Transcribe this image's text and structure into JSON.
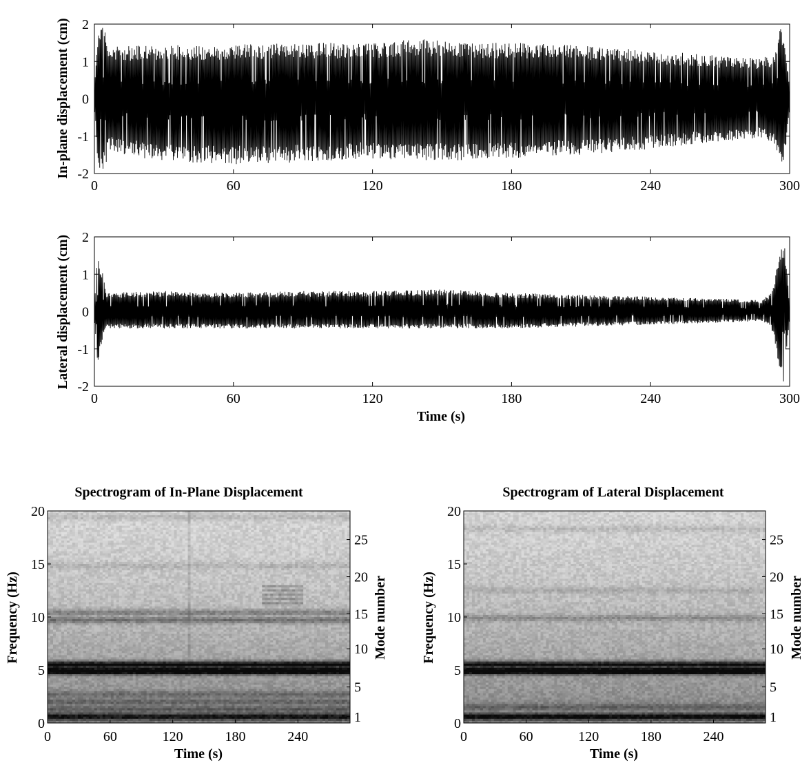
{
  "chart_data": [
    {
      "id": "inplane",
      "type": "line",
      "title": "",
      "xlabel": "",
      "ylabel": "In-plane displacement (cm)",
      "xlim": [
        0,
        300
      ],
      "ylim": [
        -2,
        2
      ],
      "xticks": [
        0,
        60,
        120,
        180,
        240,
        300
      ],
      "yticks": [
        -2,
        -1,
        0,
        1,
        2
      ],
      "grid": false,
      "envelope": {
        "t": [
          0,
          1.5,
          3,
          4.5,
          6,
          30,
          60,
          90,
          120,
          140,
          165,
          180,
          210,
          240,
          270,
          288,
          293,
          296,
          297,
          298,
          300
        ],
        "upper": [
          0.2,
          1.9,
          2.0,
          1.95,
          1.4,
          1.45,
          1.45,
          1.5,
          1.5,
          1.6,
          1.5,
          1.5,
          1.45,
          1.3,
          1.15,
          1.1,
          1.2,
          1.9,
          2.0,
          1.5,
          0.3
        ],
        "lower": [
          -0.2,
          -1.9,
          -2.0,
          -1.9,
          -1.4,
          -1.7,
          -1.75,
          -1.7,
          -1.6,
          -1.65,
          -1.65,
          -1.6,
          -1.5,
          -1.35,
          -1.15,
          -1.05,
          -1.25,
          -1.9,
          -2.0,
          -1.5,
          -0.3
        ]
      }
    },
    {
      "id": "lateral",
      "type": "line",
      "title": "",
      "xlabel": "Time (s)",
      "ylabel": "Lateral displacement (cm)",
      "xlim": [
        0,
        300
      ],
      "ylim": [
        -2,
        2
      ],
      "xticks": [
        0,
        60,
        120,
        180,
        240,
        300
      ],
      "yticks": [
        -2,
        -1,
        0,
        1,
        2
      ],
      "grid": false,
      "envelope": {
        "t": [
          0,
          1,
          2,
          3,
          4,
          5,
          30,
          60,
          90,
          120,
          150,
          180,
          210,
          240,
          270,
          288,
          292,
          294,
          296,
          297,
          298,
          300
        ],
        "upper": [
          0.2,
          1.3,
          1.5,
          1.0,
          1.15,
          0.5,
          0.55,
          0.5,
          0.55,
          0.55,
          0.6,
          0.5,
          0.45,
          0.4,
          0.35,
          0.3,
          0.5,
          1.0,
          1.8,
          2.0,
          1.7,
          0.2
        ],
        "lower": [
          -0.2,
          -1.2,
          -1.4,
          -0.9,
          -0.6,
          -0.45,
          -0.45,
          -0.45,
          -0.45,
          -0.45,
          -0.45,
          -0.45,
          -0.4,
          -0.35,
          -0.3,
          -0.25,
          -0.4,
          -1.0,
          -1.6,
          -2.0,
          -1.7,
          -0.2
        ]
      }
    },
    {
      "id": "spec_inplane",
      "type": "heatmap",
      "title": "Spectrogram of In-Plane Displacement",
      "xlabel": "Time (s)",
      "ylabel": "Frequency (Hz)",
      "ylabel_right": "Mode number",
      "xlim": [
        0,
        290
      ],
      "ylim": [
        0,
        20
      ],
      "xticks": [
        0,
        60,
        120,
        180,
        240
      ],
      "yticks": [
        0,
        5,
        10,
        15,
        20
      ],
      "right_ticks": [
        {
          "label": "1",
          "freq": 0.6
        },
        {
          "label": "5",
          "freq": 3.4
        },
        {
          "label": "10",
          "freq": 7.0
        },
        {
          "label": "15",
          "freq": 10.3
        },
        {
          "label": "20",
          "freq": 13.8
        },
        {
          "label": "25",
          "freq": 17.3
        }
      ],
      "colormap": "gray",
      "bands": [
        {
          "freq": 0.6,
          "darkness": 0.55
        },
        {
          "freq": 1.3,
          "darkness": 0.22
        },
        {
          "freq": 2.0,
          "darkness": 0.2
        },
        {
          "freq": 2.7,
          "darkness": 0.18
        },
        {
          "freq": 4.9,
          "darkness": 1.0
        },
        {
          "freq": 5.5,
          "darkness": 0.78
        },
        {
          "freq": 9.7,
          "darkness": 0.32
        },
        {
          "freq": 10.4,
          "darkness": 0.26
        },
        {
          "freq": 14.8,
          "darkness": 0.1
        },
        {
          "freq": 19.4,
          "darkness": 0.1
        }
      ]
    },
    {
      "id": "spec_lateral",
      "type": "heatmap",
      "title": "Spectrogram of Lateral Displacement",
      "xlabel": "Time (s)",
      "ylabel": "Frequency (Hz)",
      "ylabel_right": "Mode number",
      "xlim": [
        0,
        290
      ],
      "ylim": [
        0,
        20
      ],
      "xticks": [
        0,
        60,
        120,
        180,
        240
      ],
      "yticks": [
        0,
        5,
        10,
        15,
        20
      ],
      "right_ticks": [
        {
          "label": "1",
          "freq": 0.6
        },
        {
          "label": "5",
          "freq": 3.4
        },
        {
          "label": "10",
          "freq": 7.0
        },
        {
          "label": "15",
          "freq": 10.3
        },
        {
          "label": "20",
          "freq": 13.8
        },
        {
          "label": "25",
          "freq": 17.3
        }
      ],
      "colormap": "gray",
      "bands": [
        {
          "freq": 0.6,
          "darkness": 0.6
        },
        {
          "freq": 1.5,
          "darkness": 0.2
        },
        {
          "freq": 4.9,
          "darkness": 1.0
        },
        {
          "freq": 5.5,
          "darkness": 0.7
        },
        {
          "freq": 9.9,
          "darkness": 0.2
        },
        {
          "freq": 12.5,
          "darkness": 0.1
        },
        {
          "freq": 18.3,
          "darkness": 0.1
        }
      ]
    }
  ]
}
